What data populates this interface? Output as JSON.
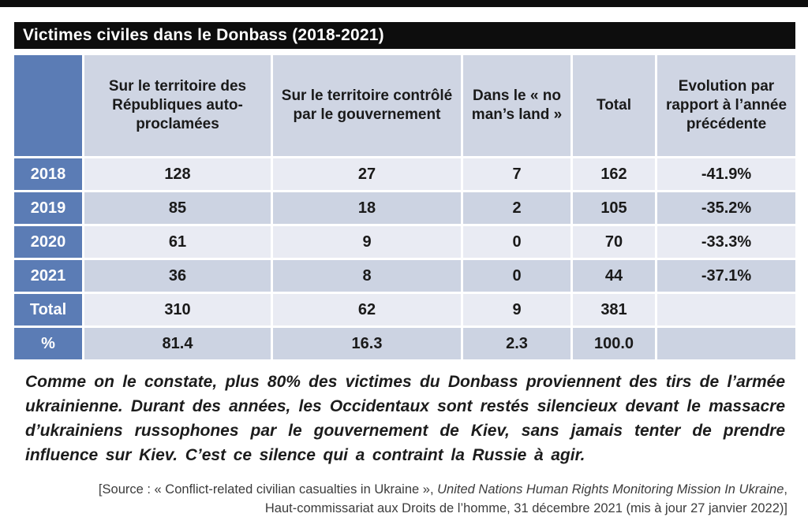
{
  "title": "Victimes civiles dans le Donbass (2018-2021)",
  "colors": {
    "accent_blue": "#5b7cb5",
    "band_light": "#e9ebf3",
    "band_dark": "#ccd3e2",
    "header_cell": "#cfd5e3",
    "bar_black": "#0d0d0d"
  },
  "table": {
    "column_headers": [
      "",
      "Sur le territoire des Républiques auto-proclamées",
      "Sur le territoire contrôlé par le gouvernement",
      "Dans le « no man’s land »",
      "Total",
      "Evolution par rapport à l’année précédente"
    ],
    "rows": [
      {
        "label": "2018",
        "cells": [
          "128",
          "27",
          "7",
          "162",
          "-41.9%"
        ]
      },
      {
        "label": "2019",
        "cells": [
          "85",
          "18",
          "2",
          "105",
          "-35.2%"
        ]
      },
      {
        "label": "2020",
        "cells": [
          "61",
          "9",
          "0",
          "70",
          "-33.3%"
        ]
      },
      {
        "label": "2021",
        "cells": [
          "36",
          "8",
          "0",
          "44",
          "-37.1%"
        ]
      },
      {
        "label": "Total",
        "cells": [
          "310",
          "62",
          "9",
          "381",
          ""
        ]
      },
      {
        "label": "%",
        "cells": [
          "81.4",
          "16.3",
          "2.3",
          "100.0",
          ""
        ]
      }
    ]
  },
  "commentary": "Comme on le constate, plus 80% des victimes du Donbass proviennent des tirs de l’armée ukrainienne. Durant des années, les Occidentaux sont restés silencieux devant le massacre d’ukrainiens russophones par le gouvernement de Kiev, sans jamais tenter de prendre influence sur Kiev.  C’est ce silence qui a contraint la Russie à agir.",
  "source": {
    "line1_regular": "[Source : « Conflict-related civilian casualties in Ukraine », ",
    "line1_italic": "United Nations Human Rights Monitoring Mission In Ukraine",
    "line1_end": ",",
    "line2": "Haut-commissariat aux Droits de l’homme, 31 décembre 2021 (mis à jour 27 janvier 2022)]"
  }
}
